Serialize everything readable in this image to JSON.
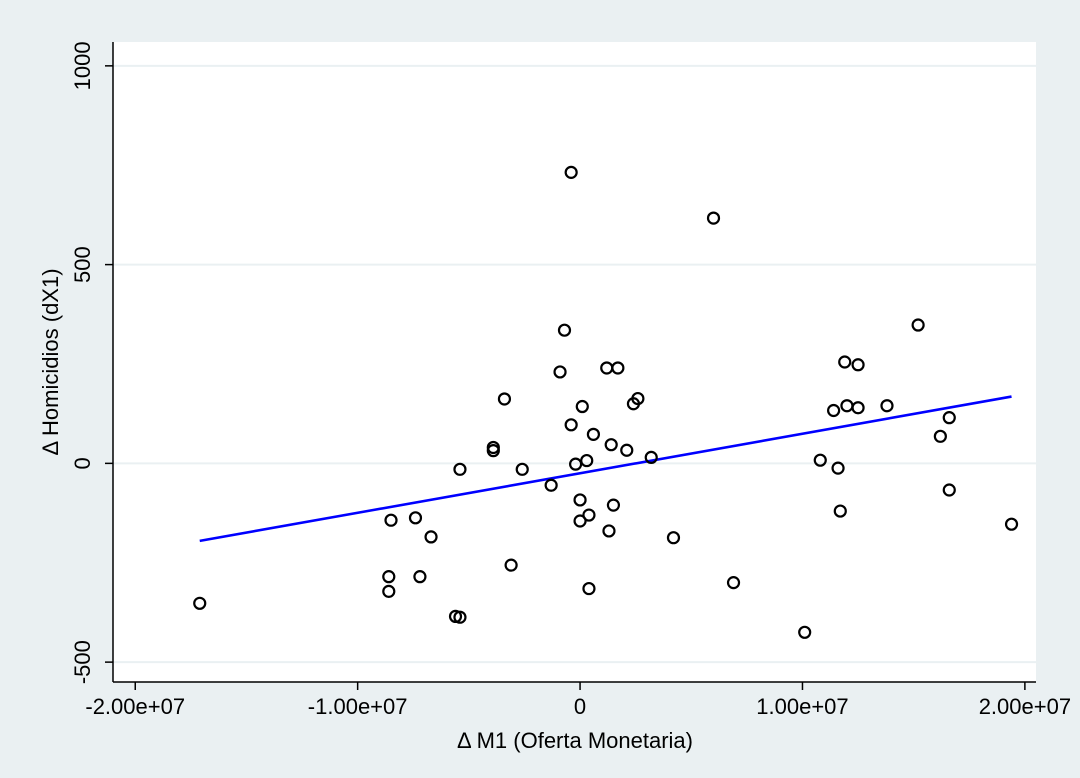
{
  "chart_data": {
    "type": "scatter",
    "title": "",
    "xlabel": "Δ M1 (Oferta Monetaria)",
    "ylabel": "Δ Homicidios (dX1)",
    "xlim": [
      -21000000,
      20500000
    ],
    "ylim": [
      -550,
      1060
    ],
    "x_ticks": [
      {
        "value": -20000000,
        "label": "-2.00e+07"
      },
      {
        "value": -10000000,
        "label": "-1.00e+07"
      },
      {
        "value": 0,
        "label": "0"
      },
      {
        "value": 10000000,
        "label": "1.00e+07"
      },
      {
        "value": 20000000,
        "label": "2.00e+07"
      }
    ],
    "y_ticks": [
      {
        "value": -500,
        "label": "-500"
      },
      {
        "value": 0,
        "label": "0"
      },
      {
        "value": 500,
        "label": "500"
      },
      {
        "value": 1000,
        "label": "1000"
      }
    ],
    "grid": true,
    "legend": "none",
    "colors": {
      "outer_background": "#eaf0f2",
      "plot_background": "#ffffff",
      "points": "#000000",
      "fit_line": "#0000ff",
      "grid": "#eaf0f2"
    },
    "series": [
      {
        "kind": "scatter",
        "marker": "hollow-circle",
        "points": [
          [
            -17100000,
            -352
          ],
          [
            -8600000,
            -285
          ],
          [
            -8600000,
            -322
          ],
          [
            -8500000,
            -143
          ],
          [
            -7400000,
            -137
          ],
          [
            -7200000,
            -285
          ],
          [
            -6700000,
            -185
          ],
          [
            -5600000,
            -385
          ],
          [
            -5400000,
            -387
          ],
          [
            -5400000,
            -15
          ],
          [
            -3900000,
            40
          ],
          [
            -3900000,
            32
          ],
          [
            -3400000,
            162
          ],
          [
            -3100000,
            -256
          ],
          [
            -2600000,
            -15
          ],
          [
            -1300000,
            -55
          ],
          [
            -900000,
            230
          ],
          [
            -700000,
            335
          ],
          [
            -400000,
            97
          ],
          [
            -400000,
            732
          ],
          [
            -200000,
            -2
          ],
          [
            0,
            -92
          ],
          [
            0,
            -145
          ],
          [
            100000,
            143
          ],
          [
            300000,
            7
          ],
          [
            400000,
            -130
          ],
          [
            400000,
            -315
          ],
          [
            600000,
            73
          ],
          [
            1200000,
            240
          ],
          [
            1300000,
            -170
          ],
          [
            1400000,
            47
          ],
          [
            1500000,
            -105
          ],
          [
            1700000,
            240
          ],
          [
            2100000,
            33
          ],
          [
            2400000,
            150
          ],
          [
            2600000,
            163
          ],
          [
            3200000,
            15
          ],
          [
            4200000,
            -187
          ],
          [
            6000000,
            617
          ],
          [
            6900000,
            -300
          ],
          [
            10100000,
            -425
          ],
          [
            10800000,
            8
          ],
          [
            11400000,
            133
          ],
          [
            11600000,
            -12
          ],
          [
            11700000,
            -120
          ],
          [
            11900000,
            255
          ],
          [
            12000000,
            145
          ],
          [
            12500000,
            248
          ],
          [
            12500000,
            140
          ],
          [
            13800000,
            145
          ],
          [
            15200000,
            348
          ],
          [
            16200000,
            68
          ],
          [
            16600000,
            -67
          ],
          [
            16600000,
            115
          ],
          [
            19400000,
            -153
          ]
        ]
      },
      {
        "kind": "line",
        "label": "fit",
        "points": [
          [
            -17100000,
            -195
          ],
          [
            19400000,
            168
          ]
        ]
      }
    ]
  }
}
